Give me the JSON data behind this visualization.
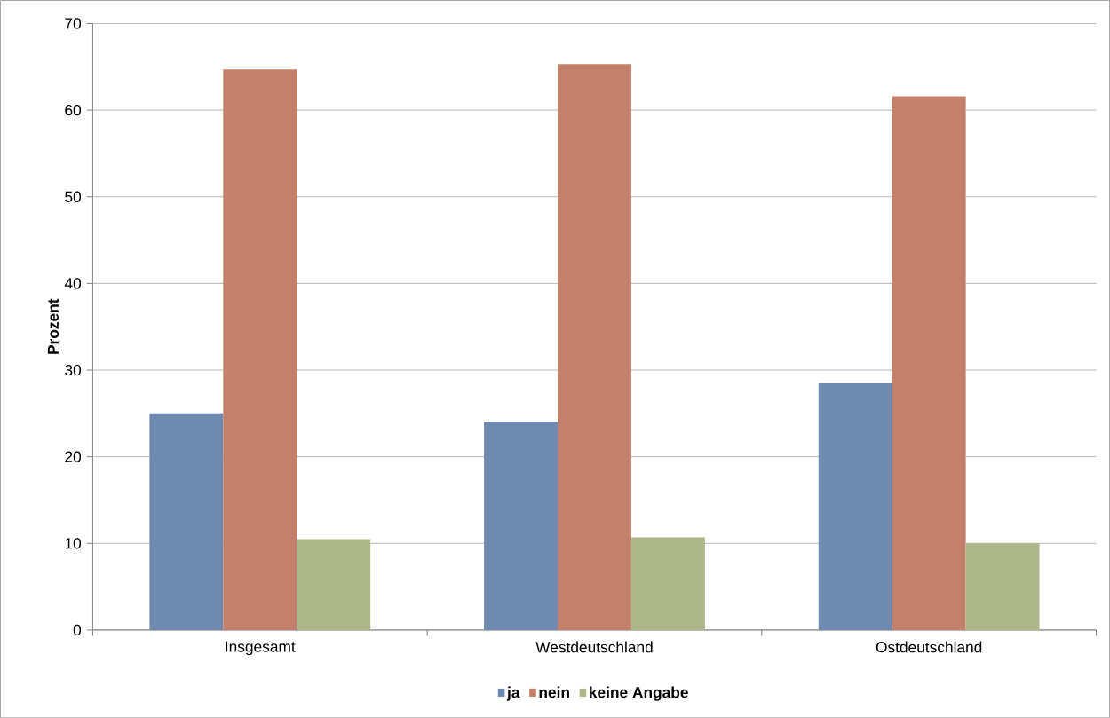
{
  "chart_data": {
    "type": "bar",
    "ylabel": "Prozent",
    "categories": [
      "Insgesamt",
      "Westdeutschland",
      "Ostdeutschland"
    ],
    "series": [
      {
        "name": "ja",
        "color": "#7089b0",
        "values": [
          25.0,
          24.0,
          28.5
        ]
      },
      {
        "name": "nein",
        "color": "#c3806a",
        "values": [
          64.7,
          65.3,
          61.6
        ]
      },
      {
        "name": "keine Angabe",
        "color": "#aeb68c",
        "values": [
          10.5,
          10.7,
          10.0
        ]
      }
    ],
    "ylim": [
      0,
      70
    ],
    "yticks": [
      0,
      10,
      20,
      30,
      40,
      50,
      60,
      70
    ],
    "grid": "y",
    "legend": "bottom"
  }
}
